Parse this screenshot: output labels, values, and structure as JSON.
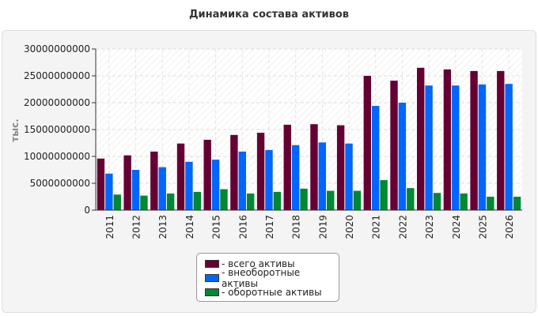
{
  "chart_data": {
    "type": "bar",
    "title": "Динамика состава активов",
    "ylabel": "тыс.",
    "xlabel": "",
    "ylim": [
      0,
      30000000000
    ],
    "yticks": [
      0,
      5000000000,
      10000000000,
      15000000000,
      20000000000,
      25000000000,
      30000000000
    ],
    "ytick_labels": [
      "0",
      "5000000000",
      "10000000000",
      "15000000000",
      "20000000000",
      "25000000000",
      "30000000000"
    ],
    "categories": [
      "2011",
      "2012",
      "2013",
      "2014",
      "2015",
      "2016",
      "2017",
      "2018",
      "2019",
      "2020",
      "2021",
      "2022",
      "2023",
      "2024",
      "2025",
      "2026"
    ],
    "series": [
      {
        "name": "всего активы",
        "color": "#660033",
        "values": [
          9600000000,
          10200000000,
          10900000000,
          12400000000,
          13100000000,
          14000000000,
          14400000000,
          15900000000,
          16000000000,
          15800000000,
          25000000000,
          24100000000,
          26500000000,
          26200000000,
          25900000000,
          25900000000
        ]
      },
      {
        "name": "внеоборотные активы",
        "color": "#0066ff",
        "values": [
          6800000000,
          7500000000,
          8000000000,
          9000000000,
          9400000000,
          10900000000,
          11200000000,
          12100000000,
          12600000000,
          12400000000,
          19400000000,
          20000000000,
          23200000000,
          23200000000,
          23400000000,
          23500000000
        ]
      },
      {
        "name": "оборотные активы",
        "color": "#008833",
        "values": [
          2900000000,
          2700000000,
          3100000000,
          3400000000,
          3900000000,
          3100000000,
          3400000000,
          4000000000,
          3600000000,
          3600000000,
          5600000000,
          4100000000,
          3200000000,
          3100000000,
          2500000000,
          2500000000
        ]
      }
    ],
    "grid": true,
    "legend_position": "bottom-center"
  }
}
